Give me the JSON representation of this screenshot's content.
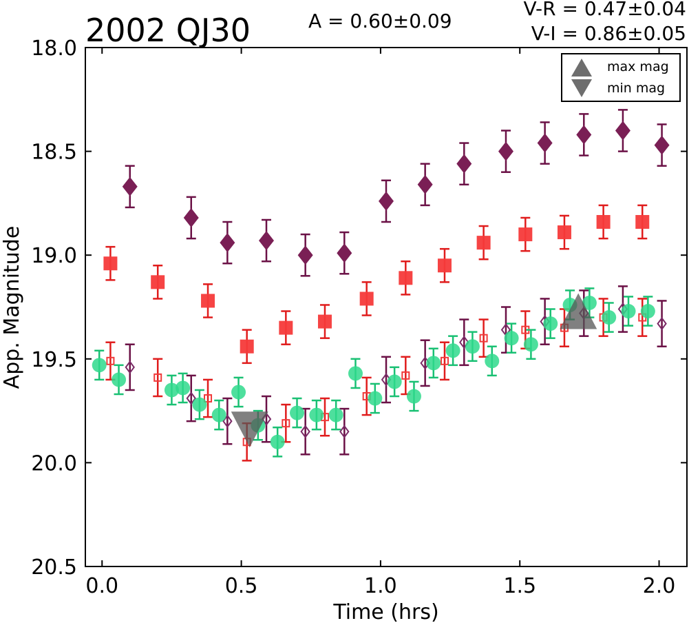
{
  "chart_data": {
    "type": "scatter",
    "title": "2002 QJ30",
    "amplitude": "A  = 0.60±0.09",
    "colors_text": [
      "V-R = 0.47±0.04",
      "V-I  = 0.86±0.05"
    ],
    "xlabel": "Time (hrs)",
    "ylabel": "App. Magnitude",
    "xlim": [
      -0.06,
      2.1
    ],
    "ylim": [
      20.5,
      18.0
    ],
    "y_inverted": true,
    "xticks": [
      "0.0",
      "0.5",
      "1.0",
      "1.5",
      "2.0"
    ],
    "yticks": [
      "18.0",
      "18.5",
      "19.0",
      "19.5",
      "20.0",
      "20.5"
    ],
    "grid": false,
    "legend": {
      "placement": "top-right",
      "entries": [
        {
          "label": "max mag",
          "marker": "triangle-up",
          "color": "#555555"
        },
        {
          "label": "min mag",
          "marker": "triangle-down",
          "color": "#555555"
        }
      ]
    },
    "series": [
      {
        "marker": "diamond-filled",
        "color": "#7a1f55",
        "err_color": "#6b1146",
        "x": [
          0.1,
          0.32,
          0.45,
          0.59,
          0.73,
          0.87,
          1.02,
          1.16,
          1.3,
          1.45,
          1.59,
          1.73,
          1.87,
          2.01
        ],
        "y": [
          18.67,
          18.82,
          18.94,
          18.93,
          19.0,
          18.99,
          18.74,
          18.66,
          18.56,
          18.5,
          18.46,
          18.42,
          18.4,
          18.47
        ],
        "err": 0.1
      },
      {
        "marker": "square-filled",
        "color": "#f53a3a",
        "err_color": "#e01c1c",
        "x": [
          0.03,
          0.2,
          0.38,
          0.52,
          0.66,
          0.8,
          0.95,
          1.09,
          1.23,
          1.37,
          1.52,
          1.66,
          1.8,
          1.94
        ],
        "y": [
          19.04,
          19.13,
          19.22,
          19.44,
          19.35,
          19.32,
          19.21,
          19.11,
          19.05,
          18.94,
          18.9,
          18.89,
          18.84,
          18.84
        ],
        "err": 0.08
      },
      {
        "marker": "circle-filled",
        "color": "#2fd98c",
        "err_color": "#19c073",
        "x": [
          -0.01,
          0.06,
          0.25,
          0.29,
          0.35,
          0.42,
          0.49,
          0.56,
          0.63,
          0.7,
          0.77,
          0.84,
          0.91,
          0.98,
          1.05,
          1.12,
          1.19,
          1.26,
          1.33,
          1.4,
          1.47,
          1.54,
          1.61,
          1.68,
          1.75,
          1.82,
          1.89,
          1.96
        ],
        "y": [
          19.53,
          19.6,
          19.65,
          19.64,
          19.72,
          19.77,
          19.66,
          19.82,
          19.9,
          19.76,
          19.77,
          19.77,
          19.57,
          19.69,
          19.61,
          19.68,
          19.52,
          19.46,
          19.44,
          19.51,
          19.4,
          19.43,
          19.33,
          19.24,
          19.23,
          19.3,
          19.27,
          19.27
        ],
        "err": 0.07
      },
      {
        "marker": "square-open",
        "color": "#f03a3a",
        "err_color": "#e01c1c",
        "x": [
          0.03,
          0.2,
          0.38,
          0.52,
          0.66,
          0.8,
          0.95,
          1.09,
          1.23,
          1.37,
          1.52,
          1.66,
          1.8,
          1.94
        ],
        "y": [
          19.51,
          19.59,
          19.69,
          19.9,
          19.81,
          19.78,
          19.68,
          19.58,
          19.51,
          19.4,
          19.36,
          19.35,
          19.3,
          19.3
        ],
        "err": 0.09
      },
      {
        "marker": "diamond-open",
        "color": "#7a2a66",
        "err_color": "#6b1146",
        "x": [
          0.1,
          0.32,
          0.45,
          0.59,
          0.73,
          0.87,
          1.02,
          1.16,
          1.3,
          1.45,
          1.59,
          1.73,
          1.87,
          2.01
        ],
        "y": [
          19.54,
          19.69,
          19.8,
          19.79,
          19.85,
          19.85,
          19.6,
          19.52,
          19.42,
          19.36,
          19.32,
          19.28,
          19.26,
          19.33
        ],
        "err": 0.11
      }
    ],
    "extrema": [
      {
        "type": "min",
        "marker": "triangle-down",
        "x": 0.53,
        "y": 19.84,
        "color": "#555555"
      },
      {
        "type": "max",
        "marker": "triangle-up",
        "x": 1.71,
        "y": 19.27,
        "color": "#555555"
      }
    ]
  }
}
